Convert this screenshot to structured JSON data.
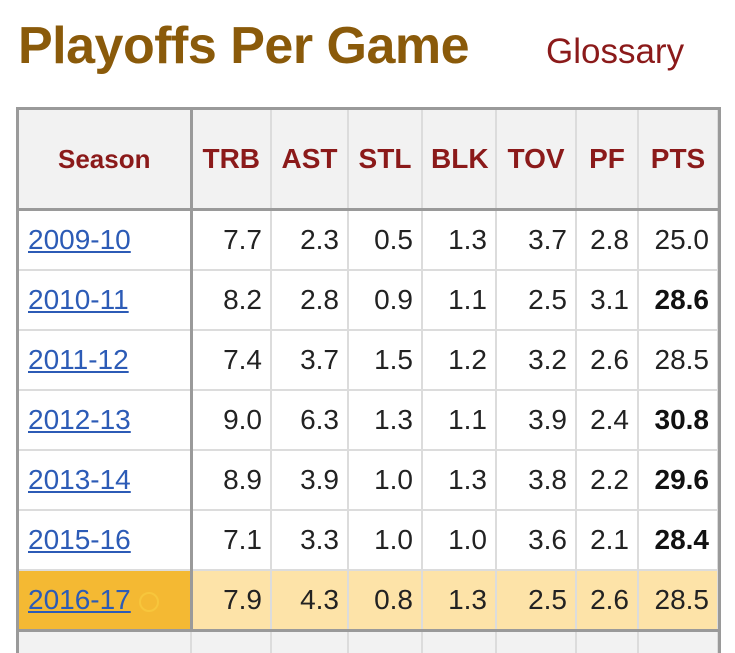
{
  "header": {
    "title": "Playoffs Per Game",
    "glossary_label": "Glossary"
  },
  "table": {
    "columns": {
      "season": "Season",
      "trb": "TRB",
      "ast": "AST",
      "stl": "STL",
      "blk": "BLK",
      "tov": "TOV",
      "pf": "PF",
      "pts": "PTS"
    },
    "rows": [
      {
        "season": "2009-10",
        "trb": "7.7",
        "ast": "2.3",
        "stl": "0.5",
        "blk": "1.3",
        "tov": "3.7",
        "pf": "2.8",
        "pts": "25.0"
      },
      {
        "season": "2010-11",
        "trb": "8.2",
        "ast": "2.8",
        "stl": "0.9",
        "blk": "1.1",
        "tov": "2.5",
        "pf": "3.1",
        "pts": "28.6"
      },
      {
        "season": "2011-12",
        "trb": "7.4",
        "ast": "3.7",
        "stl": "1.5",
        "blk": "1.2",
        "tov": "3.2",
        "pf": "2.6",
        "pts": "28.5"
      },
      {
        "season": "2012-13",
        "trb": "9.0",
        "ast": "6.3",
        "stl": "1.3",
        "blk": "1.1",
        "tov": "3.9",
        "pf": "2.4",
        "pts": "30.8"
      },
      {
        "season": "2013-14",
        "trb": "8.9",
        "ast": "3.9",
        "stl": "1.0",
        "blk": "1.3",
        "tov": "3.8",
        "pf": "2.2",
        "pts": "29.6"
      },
      {
        "season": "2015-16",
        "trb": "7.1",
        "ast": "3.3",
        "stl": "1.0",
        "blk": "1.0",
        "tov": "3.6",
        "pf": "2.1",
        "pts": "28.4"
      },
      {
        "season": "2016-17",
        "trb": "7.9",
        "ast": "4.3",
        "stl": "0.8",
        "blk": "1.3",
        "tov": "2.5",
        "pf": "2.6",
        "pts": "28.5"
      }
    ],
    "champion_icon": "circle-outline-icon"
  },
  "colors": {
    "title": "#8a5a0a",
    "header_text": "#8b1a1a",
    "link": "#2c5bb6",
    "highlight_row": "#fde3a8",
    "highlight_season": "#f4b933"
  }
}
